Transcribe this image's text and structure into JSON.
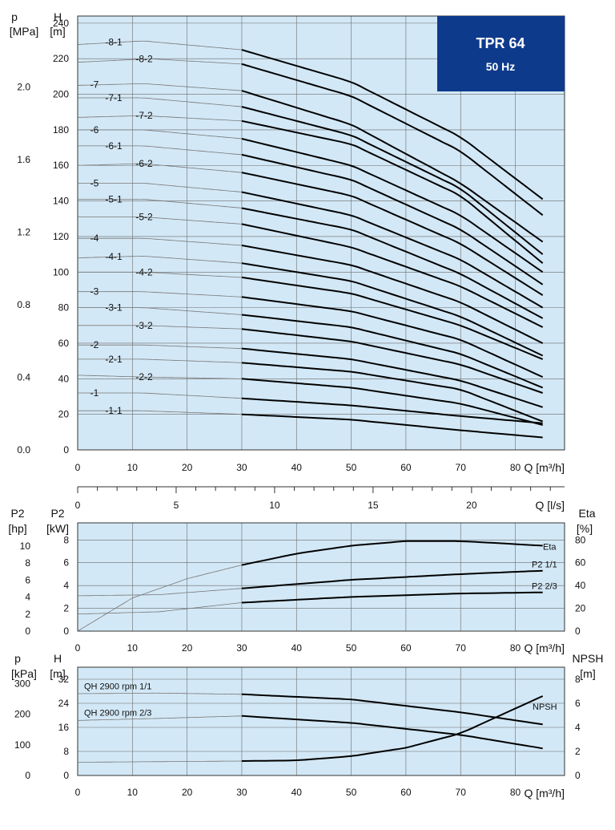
{
  "colors": {
    "plot_bg": "#d3e8f6",
    "grid": "#6a6a6a",
    "curve": "#000000",
    "thin": "#777777",
    "badge_bg": "#0e3a8c",
    "badge_text": "#ffffff"
  },
  "badge": {
    "title": "TPR 64",
    "subtitle": "50 Hz"
  },
  "chart_data": [
    {
      "type": "line",
      "name": "head-curves",
      "left_axis_label": [
        "p",
        "[MPa]"
      ],
      "y_axis_label": [
        "H",
        "[m]"
      ],
      "x_label": "Q [m³/h]",
      "x_ticks": [
        0,
        10,
        20,
        30,
        40,
        50,
        60,
        70,
        80
      ],
      "y_ticks": [
        0,
        20,
        40,
        60,
        80,
        100,
        120,
        140,
        160,
        180,
        200,
        220,
        240
      ],
      "p_ticks": [
        "0.0",
        "0.4",
        "0.8",
        "1.2",
        "1.6",
        "2.0"
      ],
      "xlim": [
        0,
        89
      ],
      "ylim": [
        0,
        244
      ],
      "note": "thin portion from Q=0 to 30, thick operating range from Q=30 to 85",
      "series": [
        {
          "name": "-8-1",
          "values": [
            [
              0,
              228
            ],
            [
              12,
              230
            ],
            [
              30,
              225
            ],
            [
              50,
              207
            ],
            [
              70,
              176
            ],
            [
              85,
              141
            ]
          ]
        },
        {
          "name": "-8-2",
          "values": [
            [
              0,
              218
            ],
            [
              13,
              220
            ],
            [
              30,
              217
            ],
            [
              50,
              199
            ],
            [
              70,
              168
            ],
            [
              85,
              132
            ]
          ]
        },
        {
          "name": "-7",
          "values": [
            [
              0,
              205
            ],
            [
              12,
              206
            ],
            [
              30,
              202
            ],
            [
              50,
              183
            ],
            [
              70,
              150
            ],
            [
              85,
              117
            ]
          ]
        },
        {
          "name": "-7-1",
          "values": [
            [
              0,
              198
            ],
            [
              12,
              198
            ],
            [
              30,
              193
            ],
            [
              50,
              177
            ],
            [
              70,
              147
            ],
            [
              85,
              110
            ]
          ]
        },
        {
          "name": "-7-2",
          "values": [
            [
              0,
              187
            ],
            [
              12,
              188
            ],
            [
              30,
              185
            ],
            [
              50,
              172
            ],
            [
              70,
              143
            ],
            [
              85,
              105
            ]
          ]
        },
        {
          "name": "-6",
          "values": [
            [
              0,
              180
            ],
            [
              12,
              180
            ],
            [
              30,
              175
            ],
            [
              50,
              160
            ],
            [
              70,
              132
            ],
            [
              85,
              100
            ]
          ]
        },
        {
          "name": "-6-1",
          "values": [
            [
              0,
              171
            ],
            [
              12,
              171
            ],
            [
              30,
              166
            ],
            [
              50,
              152
            ],
            [
              70,
              124
            ],
            [
              85,
              93
            ]
          ]
        },
        {
          "name": "-6-2",
          "values": [
            [
              0,
              160
            ],
            [
              12,
              161
            ],
            [
              30,
              156
            ],
            [
              50,
              143
            ],
            [
              70,
              116
            ],
            [
              85,
              87
            ]
          ]
        },
        {
          "name": "-5",
          "values": [
            [
              0,
              150
            ],
            [
              12,
              150
            ],
            [
              30,
              145
            ],
            [
              50,
              132
            ],
            [
              70,
              107
            ],
            [
              85,
              80
            ]
          ]
        },
        {
          "name": "-5-1",
          "values": [
            [
              0,
              141
            ],
            [
              12,
              141
            ],
            [
              30,
              136
            ],
            [
              50,
              124
            ],
            [
              70,
              99
            ],
            [
              85,
              74
            ]
          ]
        },
        {
          "name": "-5-2",
          "values": [
            [
              0,
              131
            ],
            [
              12,
              131
            ],
            [
              30,
              127
            ],
            [
              50,
              114
            ],
            [
              70,
              92
            ],
            [
              85,
              69
            ]
          ]
        },
        {
          "name": "-4",
          "values": [
            [
              0,
              119
            ],
            [
              12,
              119
            ],
            [
              30,
              115
            ],
            [
              50,
              104
            ],
            [
              70,
              83
            ],
            [
              85,
              60
            ]
          ]
        },
        {
          "name": "-4-1",
          "values": [
            [
              0,
              108
            ],
            [
              12,
              109
            ],
            [
              30,
              105
            ],
            [
              50,
              95
            ],
            [
              70,
              75
            ],
            [
              85,
              53
            ]
          ]
        },
        {
          "name": "-4-2",
          "values": [
            [
              0,
              100
            ],
            [
              12,
              100
            ],
            [
              30,
              97
            ],
            [
              50,
              88
            ],
            [
              70,
              70
            ],
            [
              85,
              51
            ]
          ]
        },
        {
          "name": "-3",
          "values": [
            [
              0,
              89
            ],
            [
              12,
              89
            ],
            [
              30,
              86
            ],
            [
              50,
              78
            ],
            [
              70,
              62
            ],
            [
              85,
              41
            ]
          ]
        },
        {
          "name": "-3-1",
          "values": [
            [
              0,
              80
            ],
            [
              12,
              80
            ],
            [
              30,
              76
            ],
            [
              50,
              69
            ],
            [
              70,
              54
            ],
            [
              85,
              35
            ]
          ]
        },
        {
          "name": "-3-2",
          "values": [
            [
              0,
              70
            ],
            [
              12,
              70
            ],
            [
              30,
              68
            ],
            [
              50,
              61
            ],
            [
              70,
              48
            ],
            [
              85,
              32
            ]
          ]
        },
        {
          "name": "-2",
          "values": [
            [
              0,
              59
            ],
            [
              12,
              59
            ],
            [
              30,
              57
            ],
            [
              50,
              51
            ],
            [
              70,
              39
            ],
            [
              85,
              24
            ]
          ]
        },
        {
          "name": "-2-1",
          "values": [
            [
              0,
              51
            ],
            [
              12,
              51
            ],
            [
              30,
              49
            ],
            [
              50,
              44
            ],
            [
              70,
              34
            ],
            [
              85,
              16
            ]
          ]
        },
        {
          "name": "-2-2",
          "values": [
            [
              0,
              42
            ],
            [
              12,
              41
            ],
            [
              30,
              40
            ],
            [
              50,
              35
            ],
            [
              70,
              26
            ],
            [
              85,
              14
            ]
          ]
        },
        {
          "name": "-1",
          "values": [
            [
              0,
              32
            ],
            [
              12,
              32
            ],
            [
              30,
              29
            ],
            [
              50,
              25
            ],
            [
              70,
              19
            ],
            [
              85,
              15
            ]
          ]
        },
        {
          "name": "-1-1",
          "values": [
            [
              0,
              22
            ],
            [
              12,
              22
            ],
            [
              30,
              20
            ],
            [
              50,
              17
            ],
            [
              70,
              11
            ],
            [
              85,
              7
            ]
          ]
        }
      ]
    },
    {
      "type": "axis",
      "name": "flow-ls",
      "x_label": "Q [l/s]",
      "x_ticks": [
        0,
        5,
        10,
        15,
        20
      ]
    },
    {
      "type": "line",
      "name": "power-efficiency",
      "left_axis_label": [
        "P2",
        "[hp]"
      ],
      "y_axis_label": [
        "P2",
        "[kW]"
      ],
      "right_axis_label": [
        "Eta",
        "[%]"
      ],
      "x_label": "Q [m³/h]",
      "x_ticks": [
        0,
        10,
        20,
        30,
        40,
        50,
        60,
        70,
        80
      ],
      "y_ticks": [
        0,
        2,
        4,
        6,
        8
      ],
      "hp_ticks": [
        0,
        2,
        4,
        6,
        8,
        10
      ],
      "eta_ticks": [
        0,
        20,
        40,
        60,
        80
      ],
      "xlim": [
        0,
        89
      ],
      "ylim": [
        0,
        9.5
      ],
      "series": [
        {
          "name": "Eta",
          "axis": "right",
          "values": [
            [
              0,
              0
            ],
            [
              10,
              29
            ],
            [
              20,
              46
            ],
            [
              30,
              58
            ],
            [
              40,
              68
            ],
            [
              50,
              75
            ],
            [
              60,
              79
            ],
            [
              70,
              79
            ],
            [
              85,
              75
            ]
          ]
        },
        {
          "name": "P2 1/1",
          "axis": "left",
          "values": [
            [
              0,
              3.1
            ],
            [
              15,
              3.2
            ],
            [
              30,
              3.75
            ],
            [
              50,
              4.5
            ],
            [
              70,
              5.0
            ],
            [
              85,
              5.3
            ]
          ]
        },
        {
          "name": "P2 2/3",
          "axis": "left",
          "values": [
            [
              0,
              1.5
            ],
            [
              15,
              1.7
            ],
            [
              30,
              2.5
            ],
            [
              50,
              3.0
            ],
            [
              70,
              3.3
            ],
            [
              85,
              3.4
            ]
          ]
        }
      ]
    },
    {
      "type": "line",
      "name": "single-stage-npsh",
      "left_axis_label": [
        "p",
        "[kPa]"
      ],
      "y_axis_label": [
        "H",
        "[m]"
      ],
      "right_axis_label": [
        "NPSH",
        "[m]"
      ],
      "x_label": "Q [m³/h]",
      "x_ticks": [
        0,
        10,
        20,
        30,
        40,
        50,
        60,
        70,
        80
      ],
      "y_ticks": [
        0,
        8,
        16,
        24,
        32
      ],
      "kpa_ticks": [
        0,
        100,
        200,
        300
      ],
      "npsh_ticks": [
        0,
        2,
        4,
        6,
        8
      ],
      "xlim": [
        0,
        89
      ],
      "ylim": [
        0,
        36
      ],
      "series": [
        {
          "name": "QH 2900 rpm 1/1",
          "axis": "left",
          "values": [
            [
              0,
              27.2
            ],
            [
              15,
              27.4
            ],
            [
              30,
              27
            ],
            [
              50,
              25.3
            ],
            [
              70,
              21
            ],
            [
              85,
              17
            ]
          ]
        },
        {
          "name": "QH 2900 rpm 2/3",
          "axis": "left",
          "values": [
            [
              0,
              18.3
            ],
            [
              15,
              19
            ],
            [
              30,
              19.8
            ],
            [
              50,
              17.5
            ],
            [
              70,
              13.5
            ],
            [
              85,
              9
            ]
          ]
        },
        {
          "name": "NPSH",
          "axis": "right",
          "values": [
            [
              0,
              1.1
            ],
            [
              15,
              1.15
            ],
            [
              30,
              1.2
            ],
            [
              40,
              1.25
            ],
            [
              50,
              1.6
            ],
            [
              60,
              2.3
            ],
            [
              70,
              3.5
            ],
            [
              85,
              6.6
            ]
          ]
        }
      ]
    }
  ]
}
